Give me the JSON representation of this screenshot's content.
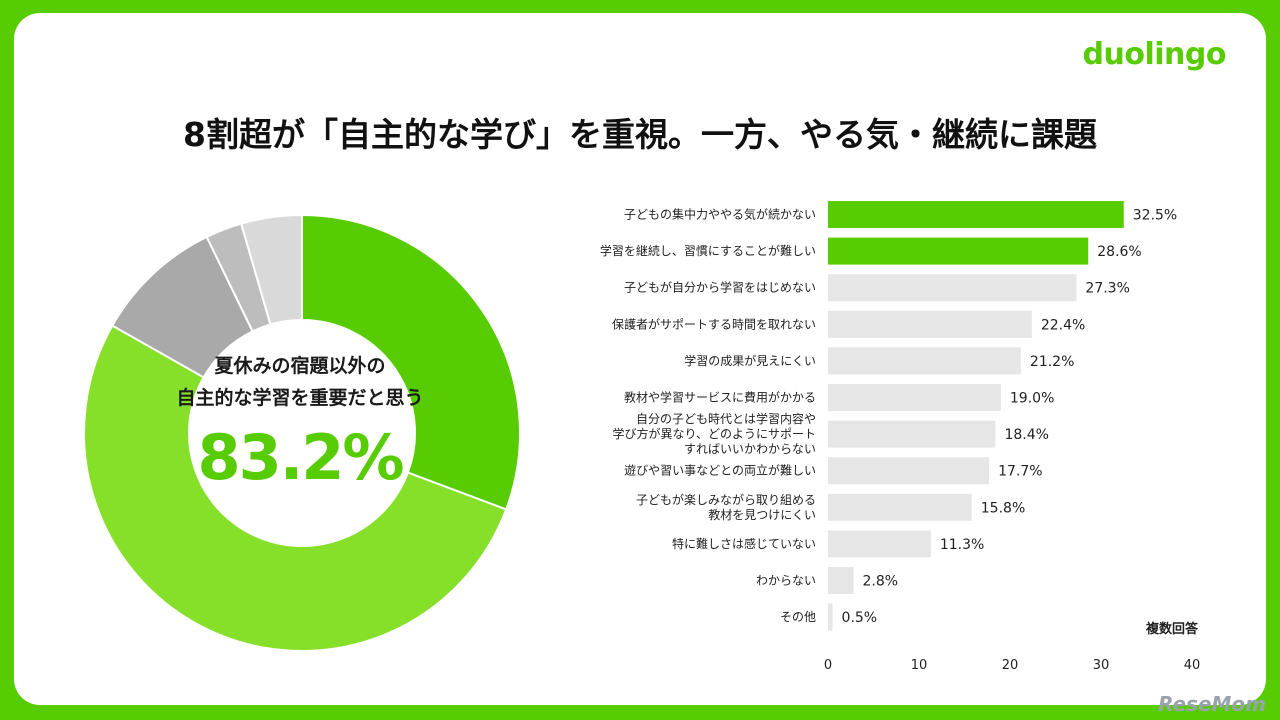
{
  "brand": "duolingo",
  "headline": "8割超が「自主的な学び」を重視。一方、やる気・継続に課題",
  "donut": {
    "line1": "夏休みの宿題以外の",
    "line2": "自主的な学習を重要だと思う",
    "value_label": "83.2%"
  },
  "note": "複数回答",
  "watermark": "ReseMom",
  "chart_data": [
    {
      "type": "pie",
      "title": "",
      "slices": [
        {
          "value": 30.7,
          "color": "#58cc02"
        },
        {
          "value": 52.5,
          "color": "#86e02a"
        },
        {
          "value": 9.6,
          "color": "#a9a9a9"
        },
        {
          "value": 2.7,
          "color": "#bdbdbd"
        },
        {
          "value": 4.5,
          "color": "#d9d9d9"
        }
      ],
      "highlight": "83.2%"
    },
    {
      "type": "bar",
      "orientation": "horizontal",
      "title": "",
      "categories": [
        [
          "子どもの集中力ややる気が続かない"
        ],
        [
          "学習を継続し、習慣にすることが難しい"
        ],
        [
          "子どもが自分から学習をはじめない"
        ],
        [
          "保護者がサポートする時間を取れない"
        ],
        [
          "学習の成果が見えにくい"
        ],
        [
          "教材や学習サービスに費用がかかる"
        ],
        [
          "自分の子ども時代とは学習内容や",
          "学び方が異なり、どのようにサポート",
          "すればいいかわからない"
        ],
        [
          "遊びや習い事などとの両立が難しい"
        ],
        [
          "子どもが楽しみながら取り組める",
          "教材を見つけにくい"
        ],
        [
          "特に難しさは感じていない"
        ],
        [
          "わからない"
        ],
        [
          "その他"
        ]
      ],
      "values": [
        32.5,
        28.6,
        27.3,
        22.4,
        21.2,
        19.0,
        18.4,
        17.7,
        15.8,
        11.3,
        2.8,
        0.5
      ],
      "value_labels": [
        "32.5%",
        "28.6%",
        "27.3%",
        "22.4%",
        "21.2%",
        "19.0%",
        "18.4%",
        "17.7%",
        "15.8%",
        "11.3%",
        "2.8%",
        "0.5%"
      ],
      "highlight_count": 2,
      "highlight_color": "#58cc02",
      "base_color": "#e6e6e6",
      "xlim": [
        0,
        40
      ],
      "xticks": [
        "0",
        "10",
        "20",
        "30",
        "40"
      ],
      "grid": false
    }
  ]
}
